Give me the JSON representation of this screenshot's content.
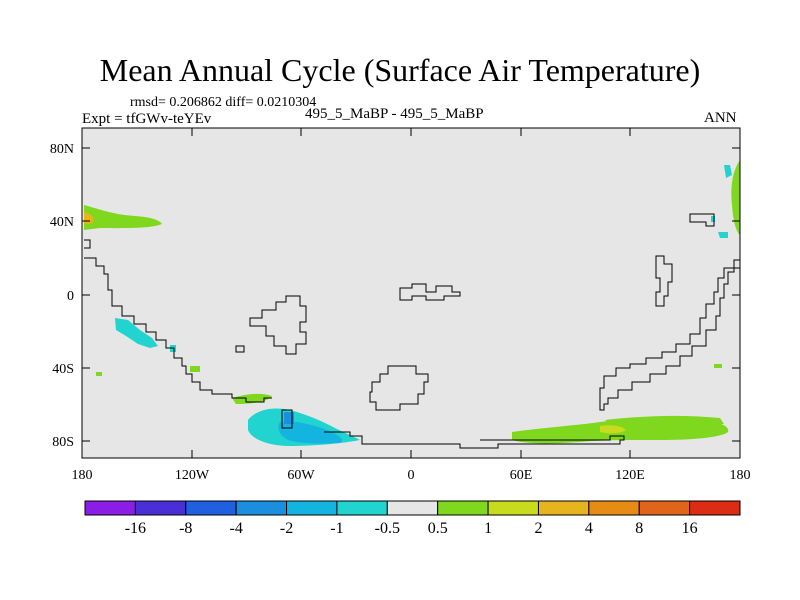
{
  "title": "Mean Annual Cycle (Surface Air Temperature)",
  "stats": "rmsd= 0.206862 diff= 0.0210304",
  "expt": "Expt = tfGWv-teYEv",
  "center_label": "495_5_MaBP - 495_5_MaBP",
  "season": "ANN",
  "map": {
    "lat_ticks": [
      "80N",
      "40N",
      "0",
      "40S",
      "80S"
    ],
    "lon_ticks": [
      "180",
      "120W",
      "60W",
      "0",
      "60E",
      "120E",
      "180"
    ],
    "background_color": "#e6e6e6"
  },
  "colorbar": {
    "labels": [
      "-16",
      "-8",
      "-4",
      "-2",
      "-1",
      "-0.5",
      "0.5",
      "1",
      "2",
      "4",
      "8",
      "16"
    ],
    "colors": [
      "#8a1ee6",
      "#4b2fd6",
      "#1f5fe0",
      "#1a8fe0",
      "#14b4e0",
      "#22d4cf",
      "#e6e6e6",
      "#7fd81e",
      "#c8dc1e",
      "#e6b41e",
      "#e68c14",
      "#e0641a",
      "#dc2d14"
    ]
  }
}
